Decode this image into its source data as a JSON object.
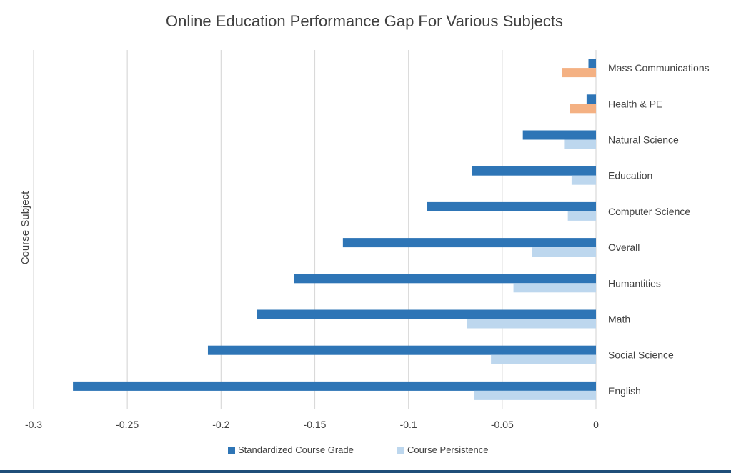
{
  "colors": {
    "grade": "#2e75b6",
    "persistence": "#bdd7ee",
    "persistence_positive": "#f4b183",
    "grid": "#d9d9d9",
    "text": "#404040",
    "title": "#404040",
    "rule": "#1f4e79"
  },
  "chart_data": {
    "type": "bar",
    "orientation": "horizontal",
    "title": "Online Education Performance Gap For Various Subjects",
    "xlabel": "",
    "ylabel": "Course Subject",
    "xlim": [
      -0.3,
      0
    ],
    "x_ticks": [
      "-0.3",
      "-0.25",
      "-0.2",
      "-0.15",
      "-0.1",
      "-0.05",
      "0"
    ],
    "grid": "vertical",
    "legend_position": "bottom",
    "categories": [
      "Mass Communications",
      "Health & PE",
      "Natural Science",
      "Education",
      "Computer Science",
      "Overall",
      "Humantities",
      "Math",
      "Social Science",
      "English"
    ],
    "series": [
      {
        "name": "Standardized Course Grade",
        "values": [
          -0.004,
          -0.005,
          -0.039,
          -0.066,
          -0.09,
          -0.135,
          -0.161,
          -0.181,
          -0.207,
          -0.279
        ]
      },
      {
        "name": "Course Persistence",
        "values": [
          -0.018,
          -0.014,
          -0.017,
          -0.013,
          -0.015,
          -0.034,
          -0.044,
          -0.069,
          -0.056,
          -0.065
        ]
      }
    ]
  }
}
